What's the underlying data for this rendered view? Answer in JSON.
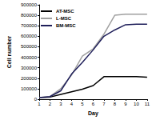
{
  "chart_data": {
    "type": "line",
    "x_label": "Day",
    "y_label": "Cell number",
    "categories": [
      "1",
      "2",
      "3",
      "4",
      "5",
      "6",
      "7",
      "8",
      "9",
      "10",
      "11"
    ],
    "series": [
      {
        "name": "AT-MSC",
        "color": "#000000",
        "values": [
          15000,
          20000,
          45000,
          70000,
          95000,
          130000,
          215000,
          215000,
          215000,
          215000,
          210000
        ]
      },
      {
        "name": "L-MSC",
        "color": "#a0a0a0",
        "values": [
          15000,
          25000,
          100000,
          230000,
          410000,
          480000,
          620000,
          800000,
          810000,
          810000,
          810000
        ]
      },
      {
        "name": "BM-MSC",
        "color": "#1f1f5a",
        "values": [
          15000,
          25000,
          80000,
          240000,
          350000,
          470000,
          600000,
          660000,
          710000,
          715000,
          715000
        ]
      }
    ],
    "ylim": [
      0,
      900000
    ],
    "yticks": [
      0,
      100000,
      200000,
      300000,
      400000,
      500000,
      600000,
      700000,
      800000,
      900000
    ],
    "grid": false,
    "legend": "upper left"
  }
}
